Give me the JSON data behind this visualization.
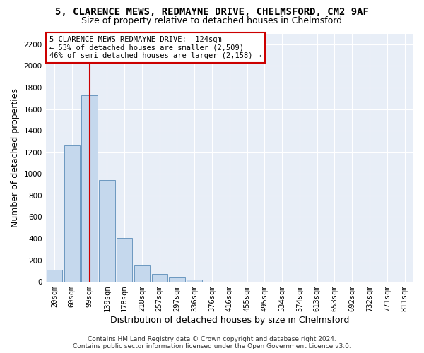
{
  "title_line1": "5, CLARENCE MEWS, REDMAYNE DRIVE, CHELMSFORD, CM2 9AF",
  "title_line2": "Size of property relative to detached houses in Chelmsford",
  "xlabel": "Distribution of detached houses by size in Chelmsford",
  "ylabel": "Number of detached properties",
  "footer_line1": "Contains HM Land Registry data © Crown copyright and database right 2024.",
  "footer_line2": "Contains public sector information licensed under the Open Government Licence v3.0.",
  "annotation_line1": "5 CLARENCE MEWS REDMAYNE DRIVE:  124sqm",
  "annotation_line2": "← 53% of detached houses are smaller (2,509)",
  "annotation_line3": "46% of semi-detached houses are larger (2,158) →",
  "bar_color": "#c5d8ed",
  "bar_edge_color": "#5b8db8",
  "vline_color": "#cc0000",
  "vline_x_index": 2,
  "categories": [
    "20sqm",
    "60sqm",
    "99sqm",
    "139sqm",
    "178sqm",
    "218sqm",
    "257sqm",
    "297sqm",
    "336sqm",
    "376sqm",
    "416sqm",
    "455sqm",
    "495sqm",
    "534sqm",
    "574sqm",
    "613sqm",
    "653sqm",
    "692sqm",
    "732sqm",
    "771sqm",
    "811sqm"
  ],
  "values": [
    110,
    1265,
    1730,
    940,
    405,
    150,
    70,
    40,
    22,
    0,
    0,
    0,
    0,
    0,
    0,
    0,
    0,
    0,
    0,
    0,
    0
  ],
  "ylim": [
    0,
    2300
  ],
  "yticks": [
    0,
    200,
    400,
    600,
    800,
    1000,
    1200,
    1400,
    1600,
    1800,
    2000,
    2200
  ],
  "background_color": "#ffffff",
  "plot_bg_color": "#e8eef7",
  "grid_color": "#ffffff",
  "annotation_box_color": "#ffffff",
  "annotation_box_edge": "#cc0000",
  "title_fontsize": 10,
  "subtitle_fontsize": 9,
  "axis_label_fontsize": 9,
  "tick_fontsize": 7.5,
  "annotation_fontsize": 7.5,
  "footer_fontsize": 6.5
}
